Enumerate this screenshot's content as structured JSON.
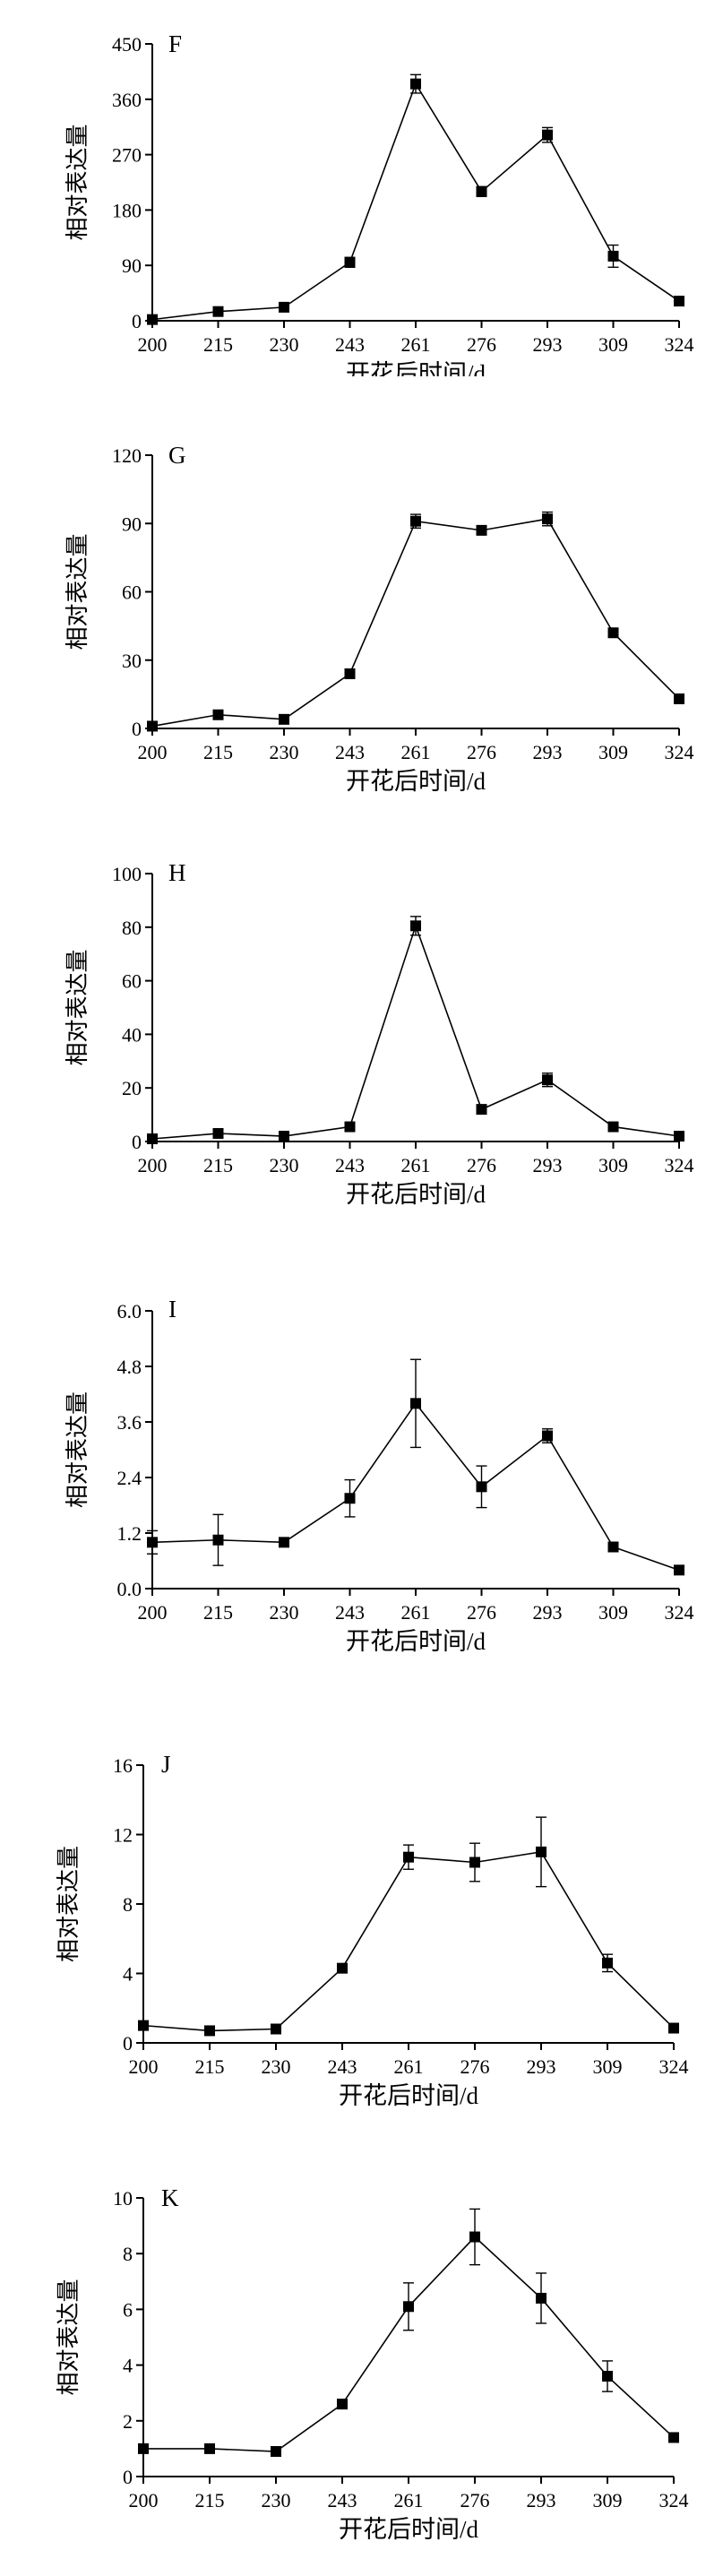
{
  "chart_data": [
    {
      "type": "line",
      "panel": "F",
      "categories": [
        "200",
        "215",
        "230",
        "243",
        "261",
        "276",
        "293",
        "309",
        "324"
      ],
      "values": [
        2,
        15,
        22,
        95,
        385,
        210,
        302,
        105,
        32
      ],
      "errors": [
        0,
        3,
        3,
        8,
        15,
        8,
        12,
        18,
        3
      ],
      "yticks": [
        "0",
        "90",
        "180",
        "270",
        "360",
        "450"
      ],
      "ylim": [
        0,
        450
      ],
      "xlabel": "开花后时间/d",
      "ylabel": "相对表达量"
    },
    {
      "type": "line",
      "panel": "G",
      "categories": [
        "200",
        "215",
        "230",
        "243",
        "261",
        "276",
        "293",
        "309",
        "324"
      ],
      "values": [
        1,
        6,
        4,
        24,
        91,
        87,
        92,
        42,
        13
      ],
      "errors": [
        0,
        1,
        1,
        1,
        3,
        1,
        3,
        1,
        1
      ],
      "yticks": [
        "0",
        "30",
        "60",
        "90",
        "120"
      ],
      "ylim": [
        0,
        120
      ],
      "xlabel": "开花后时间/d",
      "ylabel": "相对表达量"
    },
    {
      "type": "line",
      "panel": "H",
      "categories": [
        "200",
        "215",
        "230",
        "243",
        "261",
        "276",
        "293",
        "309",
        "324"
      ],
      "values": [
        1,
        3,
        2,
        5.5,
        80.5,
        12,
        23,
        5.5,
        2
      ],
      "errors": [
        0,
        0.5,
        0.5,
        0.5,
        3.5,
        1.5,
        2.5,
        0.5,
        0.5
      ],
      "yticks": [
        "0",
        "20",
        "40",
        "60",
        "80",
        "100"
      ],
      "ylim": [
        0,
        100
      ],
      "xlabel": "开花后时间/d",
      "ylabel": "相对表达量"
    },
    {
      "type": "line",
      "panel": "I",
      "categories": [
        "200",
        "215",
        "230",
        "243",
        "261",
        "276",
        "293",
        "309",
        "324"
      ],
      "values": [
        1.0,
        1.05,
        1.0,
        1.95,
        4.0,
        2.2,
        3.3,
        0.9,
        0.4
      ],
      "errors": [
        0.25,
        0.55,
        0.05,
        0.4,
        0.95,
        0.45,
        0.15,
        0.05,
        0.05
      ],
      "yticks": [
        "0.0",
        "1.2",
        "2.4",
        "3.6",
        "4.8",
        "6.0"
      ],
      "ylim": [
        0,
        6
      ],
      "xlabel": "开花后时间/d",
      "ylabel": "相对表达量"
    },
    {
      "type": "line",
      "panel": "J",
      "categories": [
        "200",
        "215",
        "230",
        "243",
        "261",
        "276",
        "293",
        "309",
        "324"
      ],
      "values": [
        1.0,
        0.7,
        0.8,
        4.3,
        10.7,
        10.4,
        11.0,
        4.6,
        0.85
      ],
      "errors": [
        0,
        0.1,
        0.1,
        0.1,
        0.7,
        1.1,
        2.0,
        0.5,
        0.1
      ],
      "yticks": [
        "0",
        "4",
        "8",
        "12",
        "16"
      ],
      "ylim": [
        0,
        16
      ],
      "xlabel": "开花后时间/d",
      "ylabel": "相对表达量"
    },
    {
      "type": "line",
      "panel": "K",
      "categories": [
        "200",
        "215",
        "230",
        "243",
        "261",
        "276",
        "293",
        "309",
        "324"
      ],
      "values": [
        1.0,
        1.0,
        0.9,
        2.6,
        6.1,
        8.6,
        6.4,
        3.6,
        1.4
      ],
      "errors": [
        0,
        0.1,
        0.05,
        0.1,
        0.85,
        1.0,
        0.9,
        0.55,
        0.05
      ],
      "yticks": [
        "0",
        "2",
        "4",
        "6",
        "8",
        "10"
      ],
      "ylim": [
        0,
        10
      ],
      "xlabel": "开花后时间/d",
      "ylabel": "相对表达量"
    }
  ]
}
